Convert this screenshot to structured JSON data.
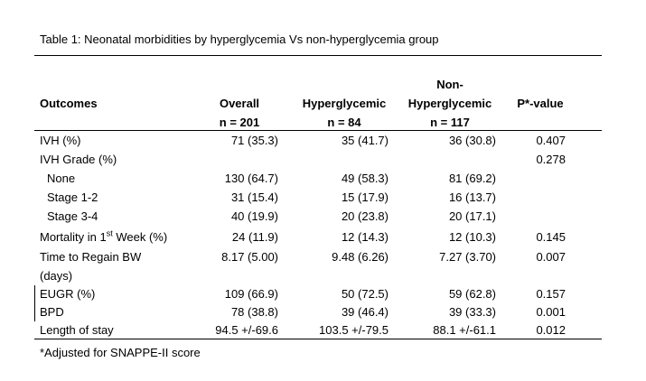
{
  "caption": "Table 1: Neonatal morbidities by hyperglycemia Vs non-hyperglycemia group",
  "headers": {
    "outcomes": "Outcomes",
    "overall_line1": "Overall",
    "overall_line2": "n = 201",
    "hyper_line1": "Hyperglycemic",
    "hyper_line2": "n = 84",
    "non_line1": "Non-",
    "non_line2": "Hyperglycemic",
    "non_line3": "n = 117",
    "p": "P*-value"
  },
  "rows": [
    {
      "label": "IVH (%)",
      "overall": "71 (35.3)",
      "hyper": "35 (41.7)",
      "non": "36 (30.8)",
      "p": "0.407"
    },
    {
      "label": "IVH Grade (%)",
      "overall": "",
      "hyper": "",
      "non": "",
      "p": "0.278"
    },
    {
      "label": "None",
      "overall": "130 (64.7)",
      "hyper": "49 (58.3)",
      "non": "81 (69.2)",
      "p": ""
    },
    {
      "label": "Stage 1-2",
      "overall": "31 (15.4)",
      "hyper": "15 (17.9)",
      "non": "16 (13.7)",
      "p": ""
    },
    {
      "label": "Stage 3-4",
      "overall": "40 (19.9)",
      "hyper": "20 (23.8)",
      "non": "20 (17.1)",
      "p": ""
    },
    {
      "label_pre": "Mortality in 1",
      "label_sup": "st",
      "label_post": " Week (%)",
      "overall": "24 (11.9)",
      "hyper": "12 (14.3)",
      "non": "12 (10.3)",
      "p": "0.145"
    },
    {
      "label": "Time to Regain BW",
      "overall": "8.17 (5.00)",
      "hyper": "9.48 (6.26)",
      "non": "7.27 (3.70)",
      "p": "0.007"
    },
    {
      "label": "(days)",
      "overall": "",
      "hyper": "",
      "non": "",
      "p": ""
    },
    {
      "label": "EUGR (%)",
      "overall": "109 (66.9)",
      "hyper": "50 (72.5)",
      "non": "59 (62.8)",
      "p": "0.157"
    },
    {
      "label": "BPD",
      "overall": "78 (38.8)",
      "hyper": "39 (46.4)",
      "non": "39 (33.3)",
      "p": "0.001"
    },
    {
      "label": "Length of stay",
      "overall": "94.5 +/-69.6",
      "hyper": "103.5 +/-79.5",
      "non": "88.1 +/-61.1",
      "p": "0.012"
    }
  ],
  "footnote": "*Adjusted for SNAPPE-II score"
}
